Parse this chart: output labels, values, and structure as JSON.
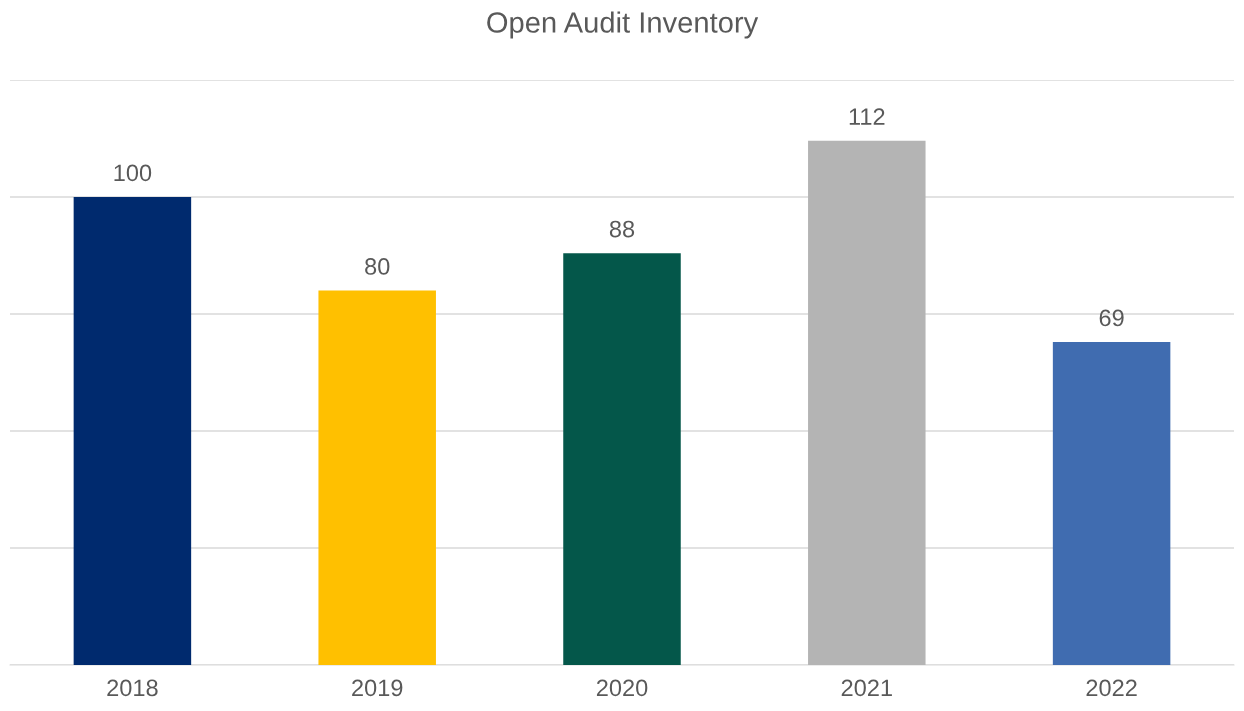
{
  "chart_data": {
    "type": "bar",
    "title": "Open Audit Inventory",
    "categories": [
      "2018",
      "2019",
      "2020",
      "2021",
      "2022"
    ],
    "values": [
      100,
      80,
      88,
      112,
      69
    ],
    "colors": [
      "#002a6e",
      "#ffc000",
      "#04574a",
      "#b4b4b4",
      "#406cb0"
    ],
    "ylim": [
      0,
      125
    ],
    "yticks": [
      {
        "value": 0,
        "label": null
      },
      {
        "value": 25,
        "label": null
      },
      {
        "value": 50,
        "label": null
      },
      {
        "value": 75,
        "label": null
      },
      {
        "value": 100,
        "label": null
      },
      {
        "value": 125,
        "label": null
      }
    ],
    "grid": "y",
    "tick_labels": "x",
    "data_labels": true
  }
}
